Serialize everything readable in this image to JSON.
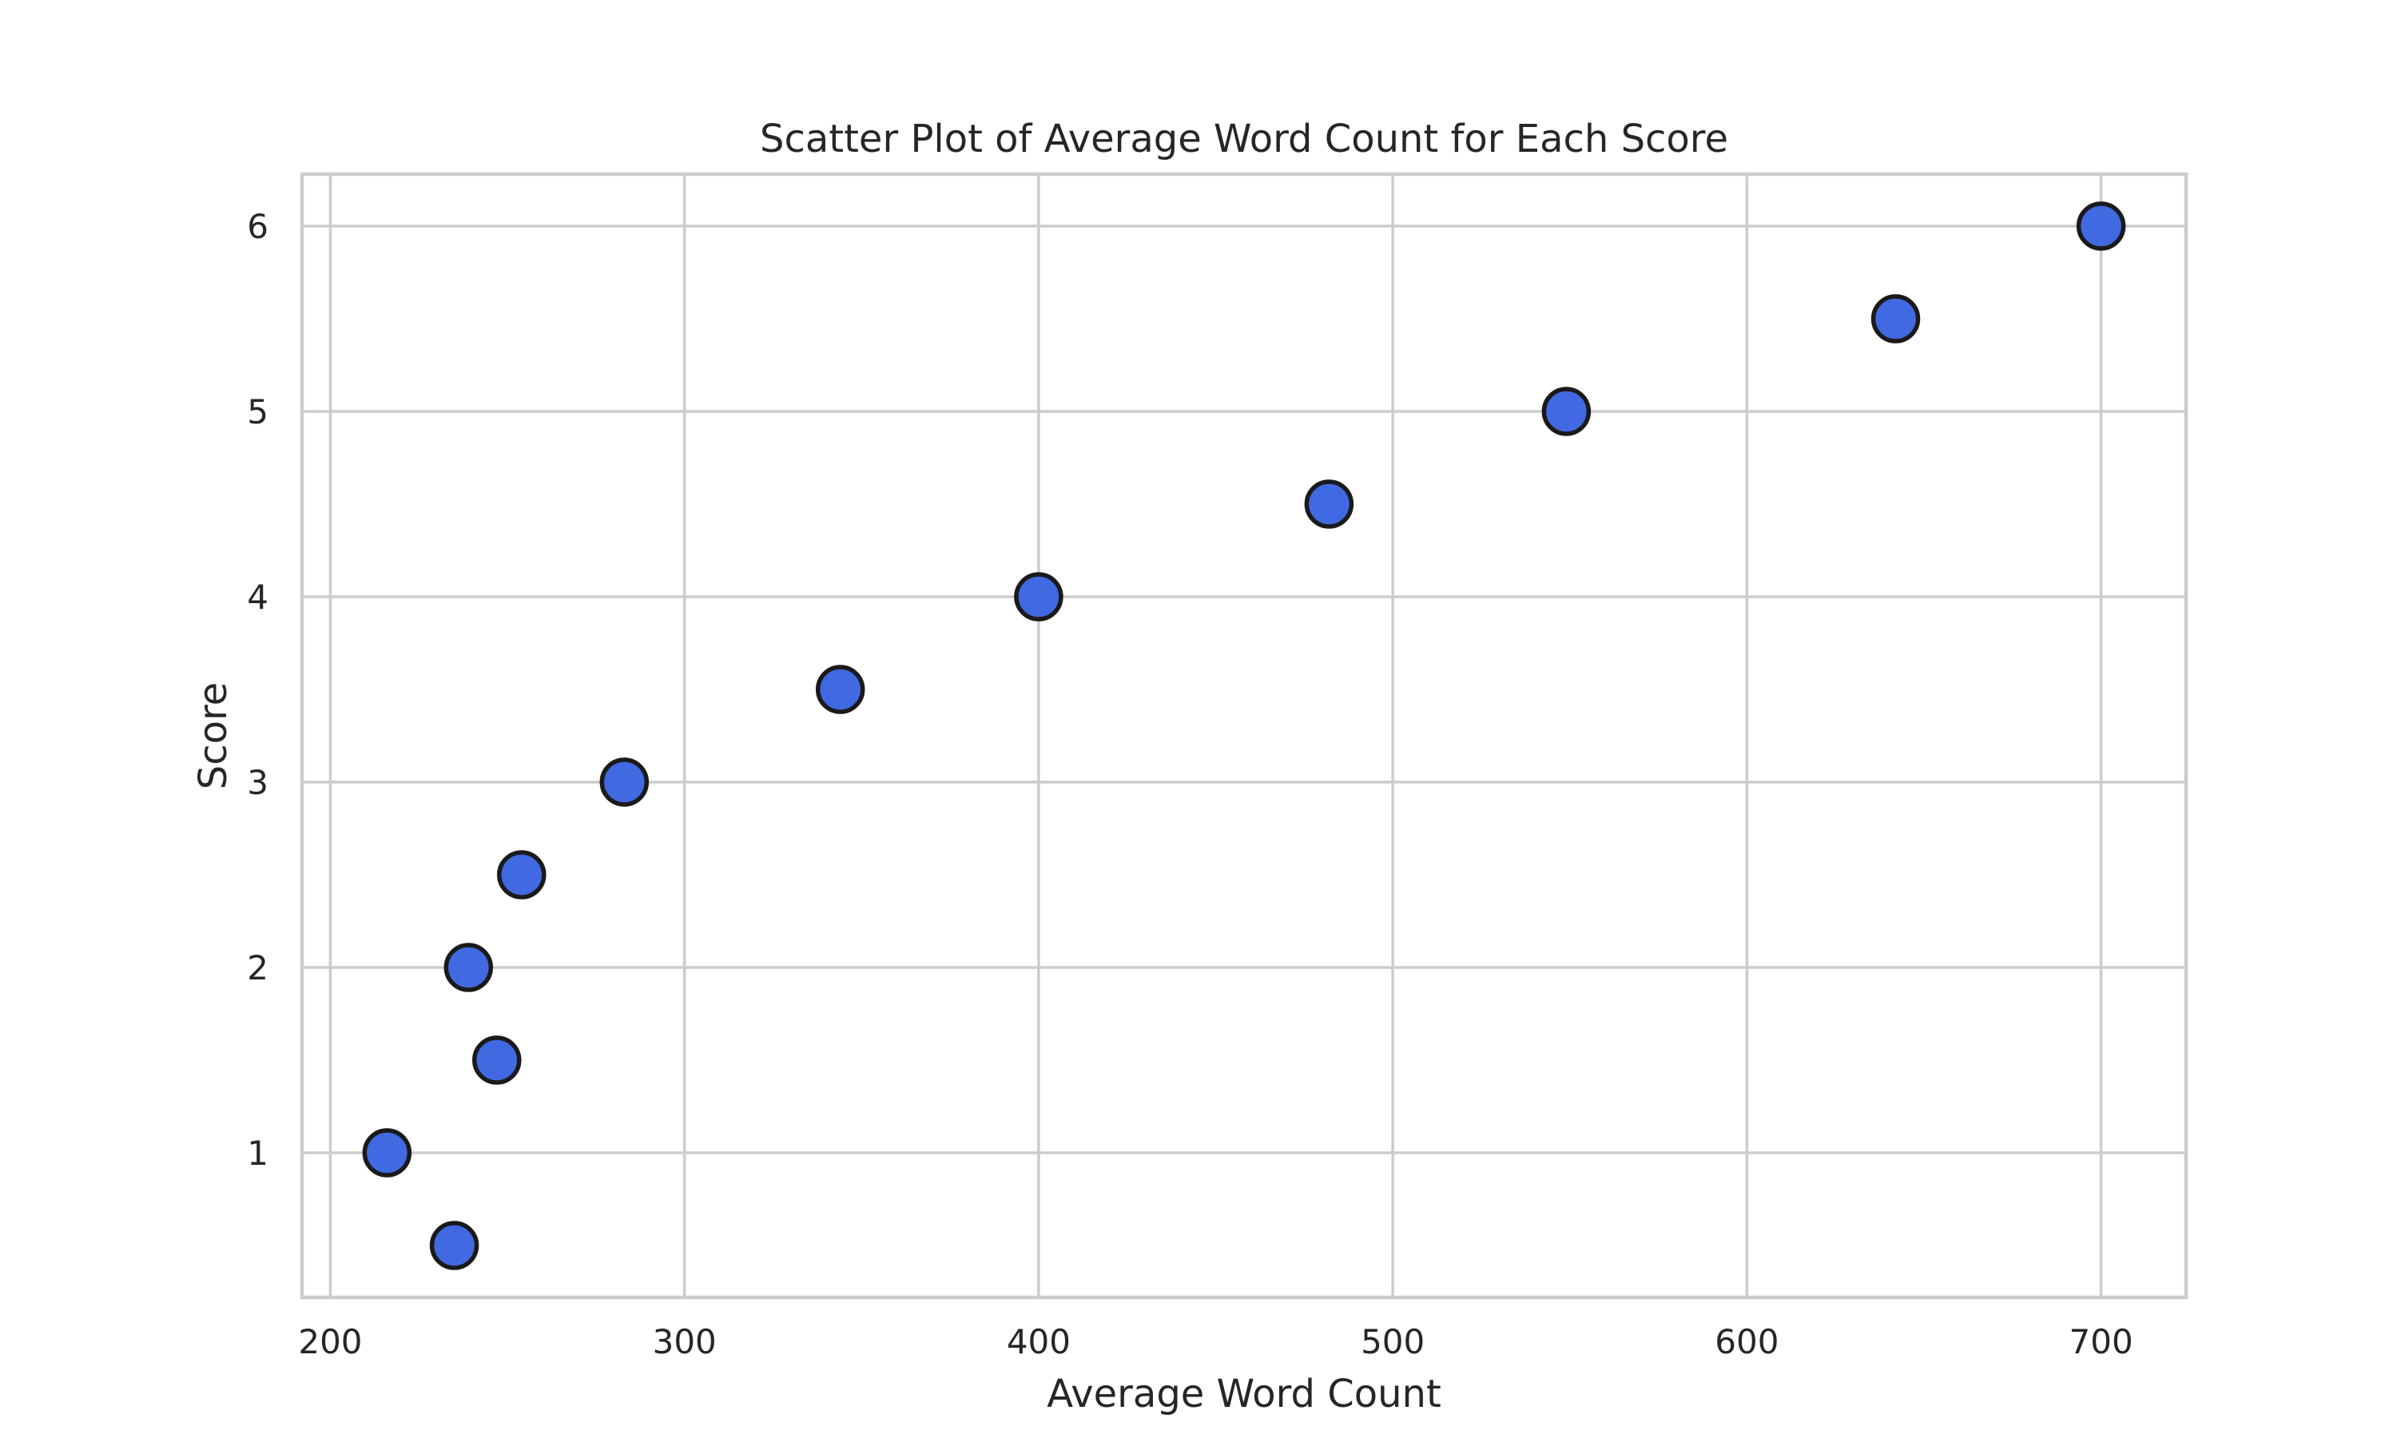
{
  "chart_data": {
    "type": "scatter",
    "title": "Scatter Plot of Average Word Count for Each Score",
    "xlabel": "Average Word Count",
    "ylabel": "Score",
    "xlim": [
      192,
      724
    ],
    "ylim": [
      0.22,
      6.28
    ],
    "x_ticks": [
      200,
      300,
      400,
      500,
      600,
      700
    ],
    "y_ticks": [
      1,
      2,
      3,
      4,
      5,
      6
    ],
    "grid": true,
    "marker_color": "#4169e1",
    "marker_edge_color": "#1a1a1a",
    "points": [
      {
        "x": 235,
        "y": 0.5
      },
      {
        "x": 216,
        "y": 1.0
      },
      {
        "x": 247,
        "y": 1.5
      },
      {
        "x": 239,
        "y": 2.0
      },
      {
        "x": 254,
        "y": 2.5
      },
      {
        "x": 283,
        "y": 3.0
      },
      {
        "x": 344,
        "y": 3.5
      },
      {
        "x": 400,
        "y": 4.0
      },
      {
        "x": 482,
        "y": 4.5
      },
      {
        "x": 549,
        "y": 5.0
      },
      {
        "x": 642,
        "y": 5.5
      },
      {
        "x": 700,
        "y": 6.0
      }
    ]
  }
}
